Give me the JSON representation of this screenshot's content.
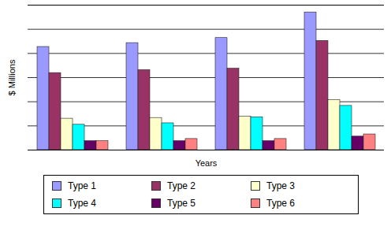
{
  "chart_data": {
    "type": "bar",
    "x_label": "Years",
    "y_label": "$ Millions",
    "categories": [
      null,
      null,
      null,
      null
    ],
    "series": [
      {
        "name": "Type 1",
        "color": "#9999ff",
        "values": [
          4.27,
          4.43,
          4.64,
          5.7
        ]
      },
      {
        "name": "Type 2",
        "color": "#993366",
        "values": [
          3.19,
          3.31,
          3.37,
          4.52
        ]
      },
      {
        "name": "Type 3",
        "color": "#ffffcc",
        "values": [
          1.3,
          1.33,
          1.39,
          2.07
        ]
      },
      {
        "name": "Type 4",
        "color": "#00ffff",
        "values": [
          1.05,
          1.11,
          1.36,
          1.83
        ]
      },
      {
        "name": "Type 5",
        "color": "#660066",
        "values": [
          0.37,
          0.37,
          0.37,
          0.56
        ]
      },
      {
        "name": "Type 6",
        "color": "#ff8080",
        "values": [
          0.37,
          0.46,
          0.46,
          0.65
        ]
      }
    ],
    "ylim": [
      0,
      6
    ],
    "yticks": [
      0,
      1,
      2,
      3,
      4,
      5,
      6
    ],
    "grid": true,
    "legend": "bottom",
    "tick_labels": false
  }
}
